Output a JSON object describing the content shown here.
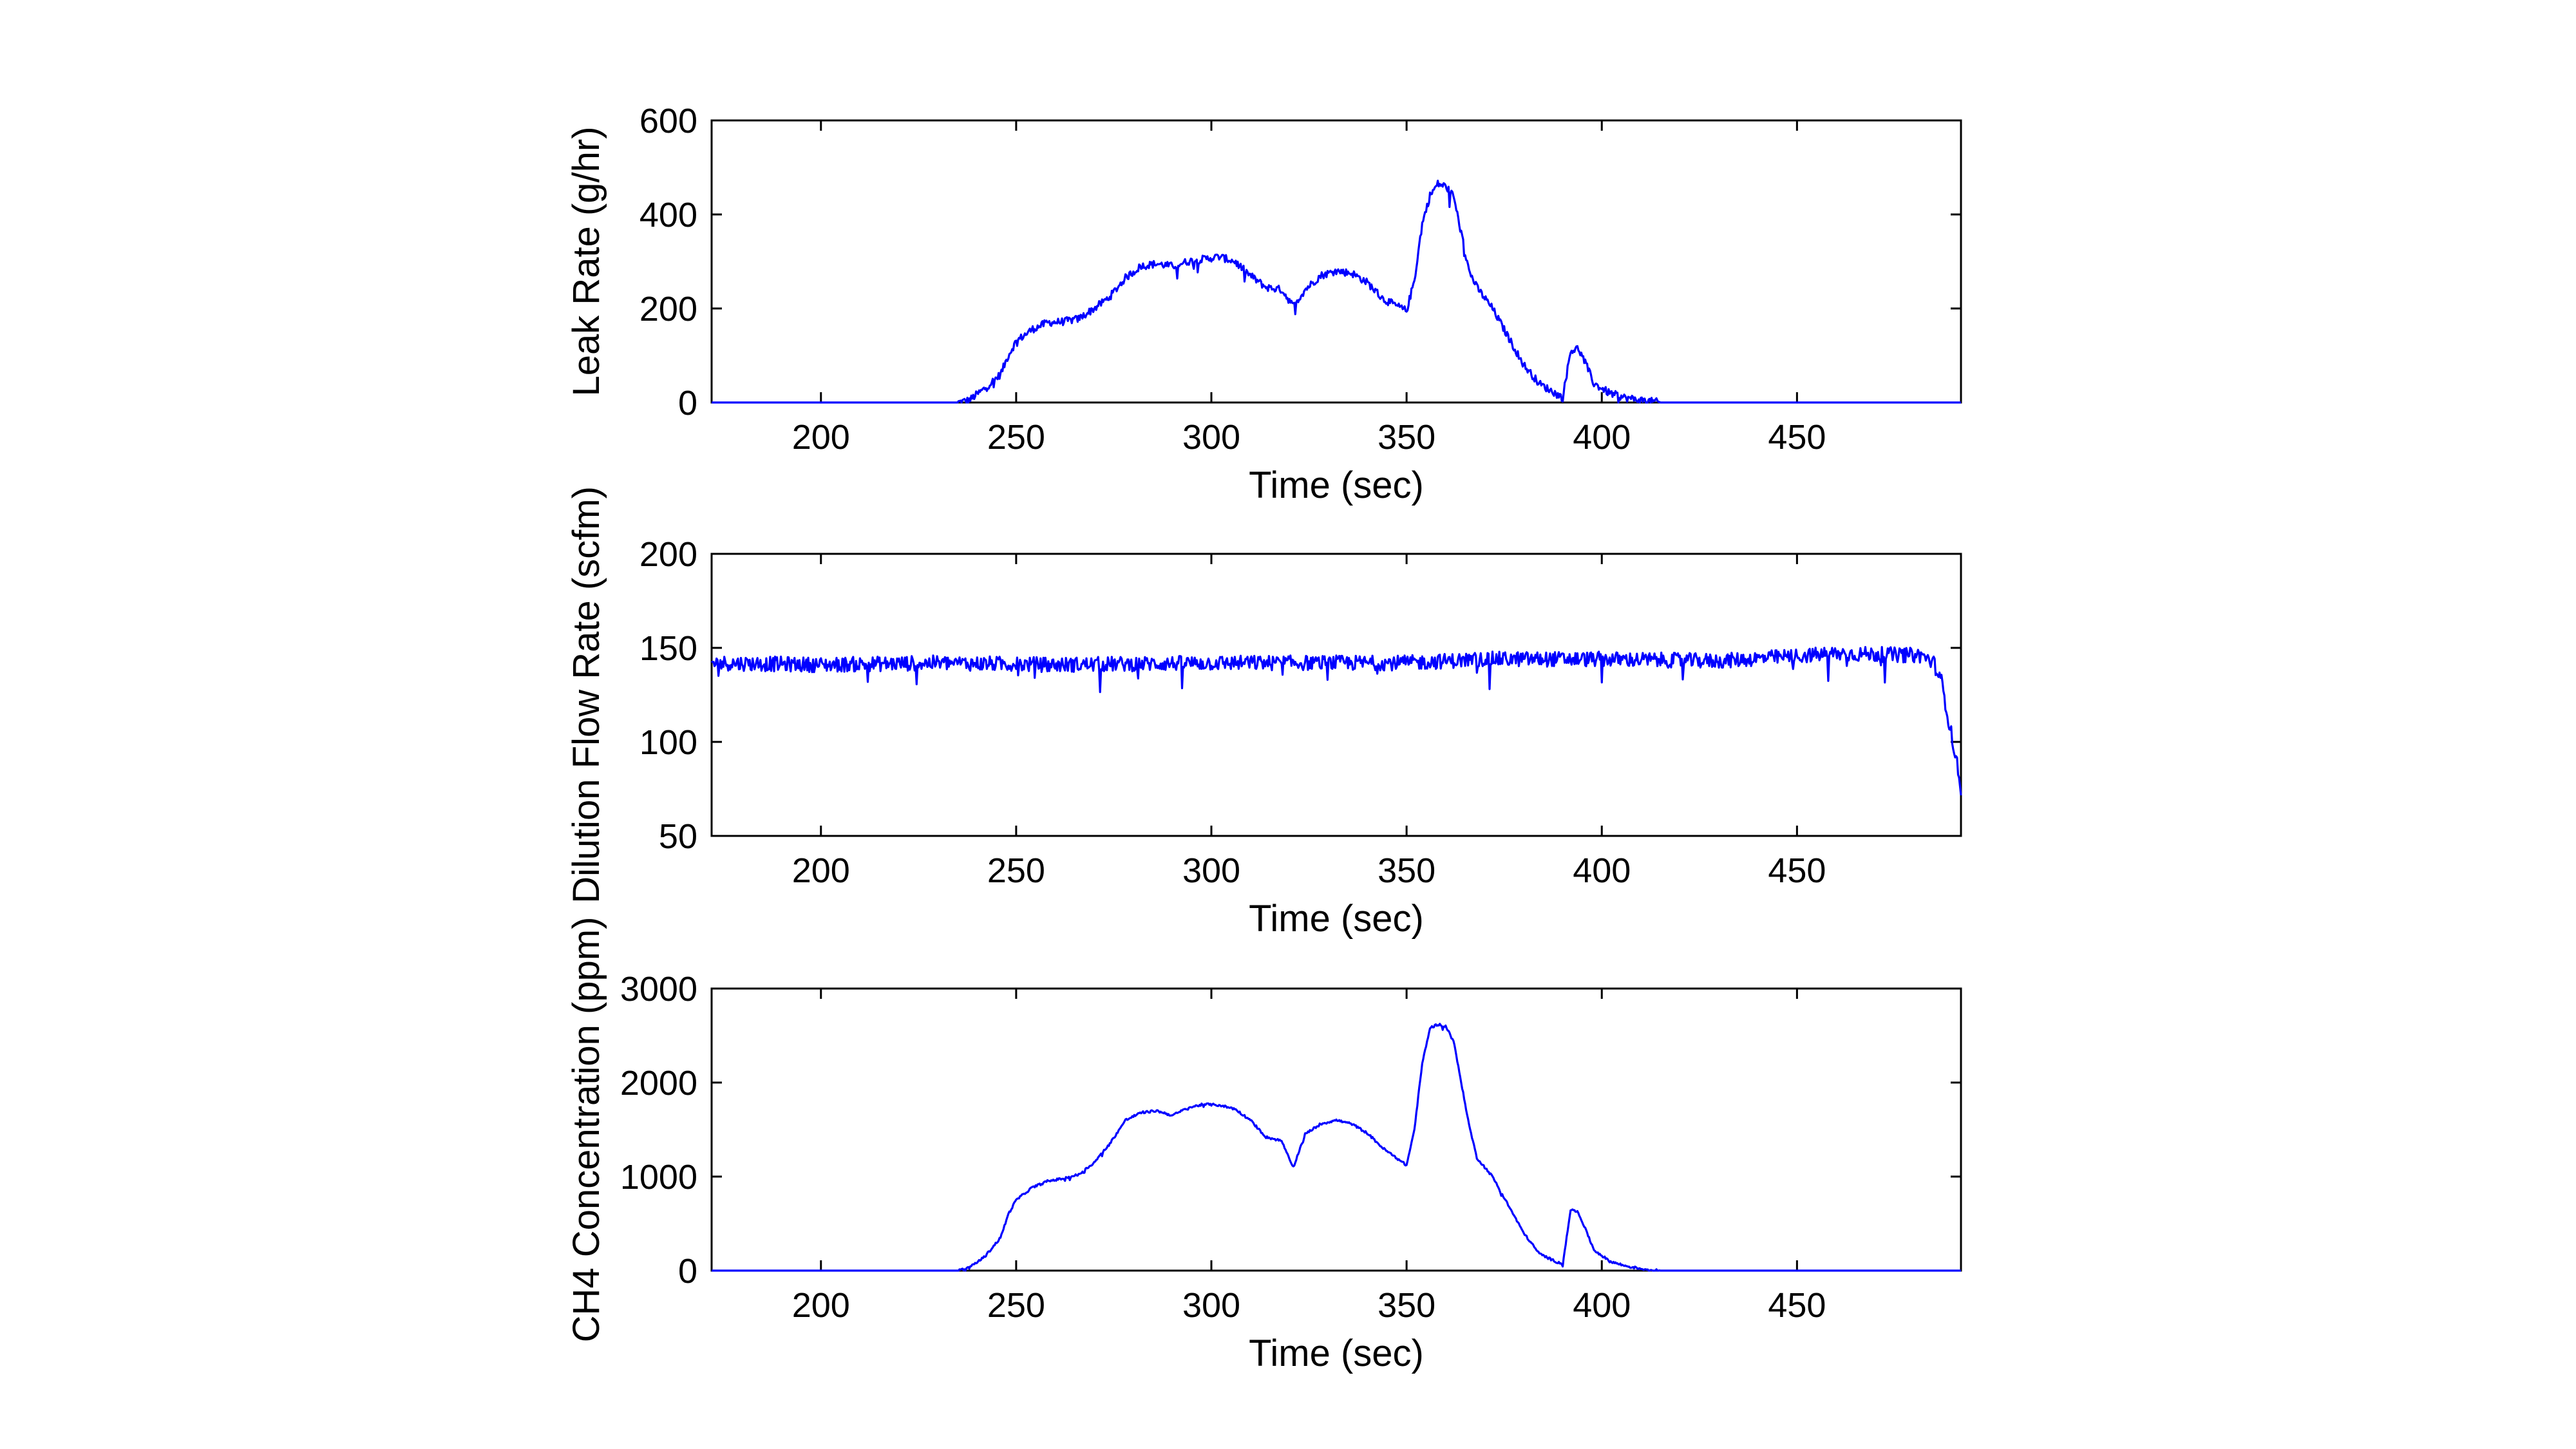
{
  "chart_data": [
    {
      "type": "line",
      "xlabel": "Time (sec)",
      "ylabel": "Leak Rate (g/hr)",
      "xlim": [
        172,
        492
      ],
      "ylim": [
        0,
        600
      ],
      "xticks": [
        200,
        250,
        300,
        350,
        400,
        450
      ],
      "yticks": [
        0,
        200,
        400,
        600
      ],
      "grid": false,
      "color": "#0000ff",
      "noise": 8,
      "series": [
        {
          "name": "Leak Rate",
          "x": [
            172,
            235,
            238,
            242,
            246,
            248,
            250,
            254,
            258,
            262,
            266,
            270,
            274,
            278,
            282,
            286,
            290,
            294,
            298,
            302,
            306,
            310,
            314,
            318,
            321,
            324,
            328,
            332,
            336,
            340,
            344,
            350,
            352,
            354,
            356,
            358,
            360,
            362,
            364,
            366,
            368,
            372,
            376,
            380,
            384,
            388,
            390,
            391,
            392,
            394,
            396,
            398,
            402,
            406,
            410,
            413,
            415,
            492
          ],
          "y": [
            0,
            0,
            5,
            30,
            60,
            100,
            130,
            155,
            170,
            172,
            178,
            200,
            225,
            265,
            290,
            295,
            290,
            300,
            305,
            310,
            300,
            270,
            245,
            240,
            205,
            240,
            270,
            280,
            275,
            255,
            220,
            195,
            260,
            380,
            440,
            465,
            460,
            440,
            360,
            280,
            245,
            200,
            140,
            80,
            40,
            20,
            10,
            60,
            110,
            115,
            80,
            40,
            20,
            10,
            5,
            2,
            0,
            0
          ]
        }
      ]
    },
    {
      "type": "line",
      "xlabel": "Time (sec)",
      "ylabel": "Dilution Flow Rate (scfm)",
      "xlim": [
        172,
        492
      ],
      "ylim": [
        50,
        200
      ],
      "xticks": [
        200,
        250,
        300,
        350,
        400,
        450
      ],
      "yticks": [
        50,
        100,
        150,
        200
      ],
      "grid": false,
      "color": "#0000ff",
      "noise": 4,
      "series": [
        {
          "name": "Dilution Flow Rate",
          "x": [
            172,
            200,
            230,
            260,
            300,
            330,
            350,
            370,
            400,
            430,
            460,
            482,
            485,
            487,
            489,
            491,
            492
          ],
          "y": [
            142,
            141,
            142,
            141,
            142,
            142,
            142,
            144,
            144,
            143,
            147,
            146,
            142,
            132,
            110,
            88,
            75
          ]
        }
      ]
    },
    {
      "type": "line",
      "xlabel": "Time (sec)",
      "ylabel": "CH4 Concentration (ppm)",
      "xlim": [
        172,
        492
      ],
      "ylim": [
        0,
        3000
      ],
      "xticks": [
        200,
        250,
        300,
        350,
        400,
        450
      ],
      "yticks": [
        0,
        1000,
        2000,
        3000
      ],
      "grid": false,
      "color": "#0000ff",
      "noise": 12,
      "series": [
        {
          "name": "CH4 Concentration",
          "x": [
            172,
            235,
            238,
            242,
            246,
            248,
            250,
            254,
            258,
            262,
            266,
            270,
            274,
            278,
            282,
            286,
            290,
            294,
            298,
            302,
            306,
            310,
            314,
            318,
            321,
            324,
            328,
            332,
            336,
            340,
            344,
            350,
            352,
            354,
            356,
            358,
            360,
            362,
            364,
            366,
            368,
            372,
            376,
            380,
            384,
            388,
            390,
            391,
            392,
            394,
            396,
            398,
            402,
            406,
            410,
            413,
            415,
            492
          ],
          "y": [
            0,
            0,
            30,
            150,
            350,
            600,
            750,
            880,
            950,
            980,
            1020,
            1150,
            1350,
            1600,
            1680,
            1700,
            1650,
            1730,
            1770,
            1760,
            1720,
            1600,
            1420,
            1380,
            1100,
            1450,
            1560,
            1600,
            1560,
            1460,
            1300,
            1120,
            1500,
            2200,
            2580,
            2620,
            2600,
            2450,
            2000,
            1550,
            1200,
            1000,
            700,
            400,
            180,
            100,
            70,
            350,
            650,
            620,
            420,
            220,
            100,
            50,
            20,
            5,
            0,
            0
          ]
        }
      ]
    }
  ]
}
